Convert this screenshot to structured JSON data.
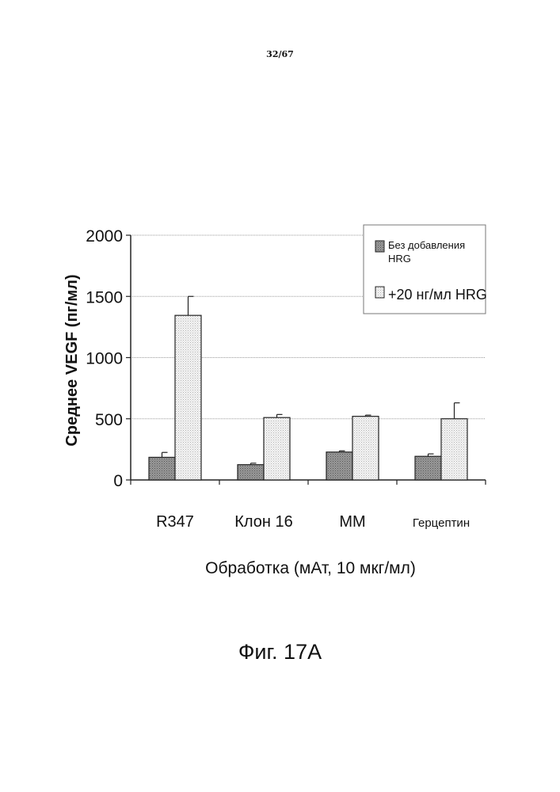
{
  "page_number": "32/67",
  "figure_caption": "Фиг. 17А",
  "chart_data": {
    "type": "bar",
    "categories": [
      "R347",
      "Клон 16",
      "MM",
      "Герцептин"
    ],
    "series": [
      {
        "name": "Без добавления HRG",
        "values": [
          185,
          125,
          228,
          193
        ],
        "errors": [
          40,
          12,
          10,
          20
        ],
        "color": "#8c8c8c"
      },
      {
        "name": "+20 нг/мл HRG",
        "values": [
          1345,
          510,
          520,
          500
        ],
        "errors": [
          155,
          25,
          10,
          130
        ],
        "color": "#e4e4e4"
      }
    ],
    "legend_lines": [
      [
        "Без добавления",
        "HRG"
      ],
      [
        "+20 нг/мл HRG"
      ]
    ],
    "title": "",
    "xlabel": "Обработка (мАт, 10 мкг/мл)",
    "ylabel": "Среднее VEGF (пг/мл)",
    "ylim": [
      0,
      2000
    ],
    "yticks": [
      0,
      500,
      1000,
      1500,
      2000
    ],
    "grid": true,
    "legend_position": "top-right"
  }
}
